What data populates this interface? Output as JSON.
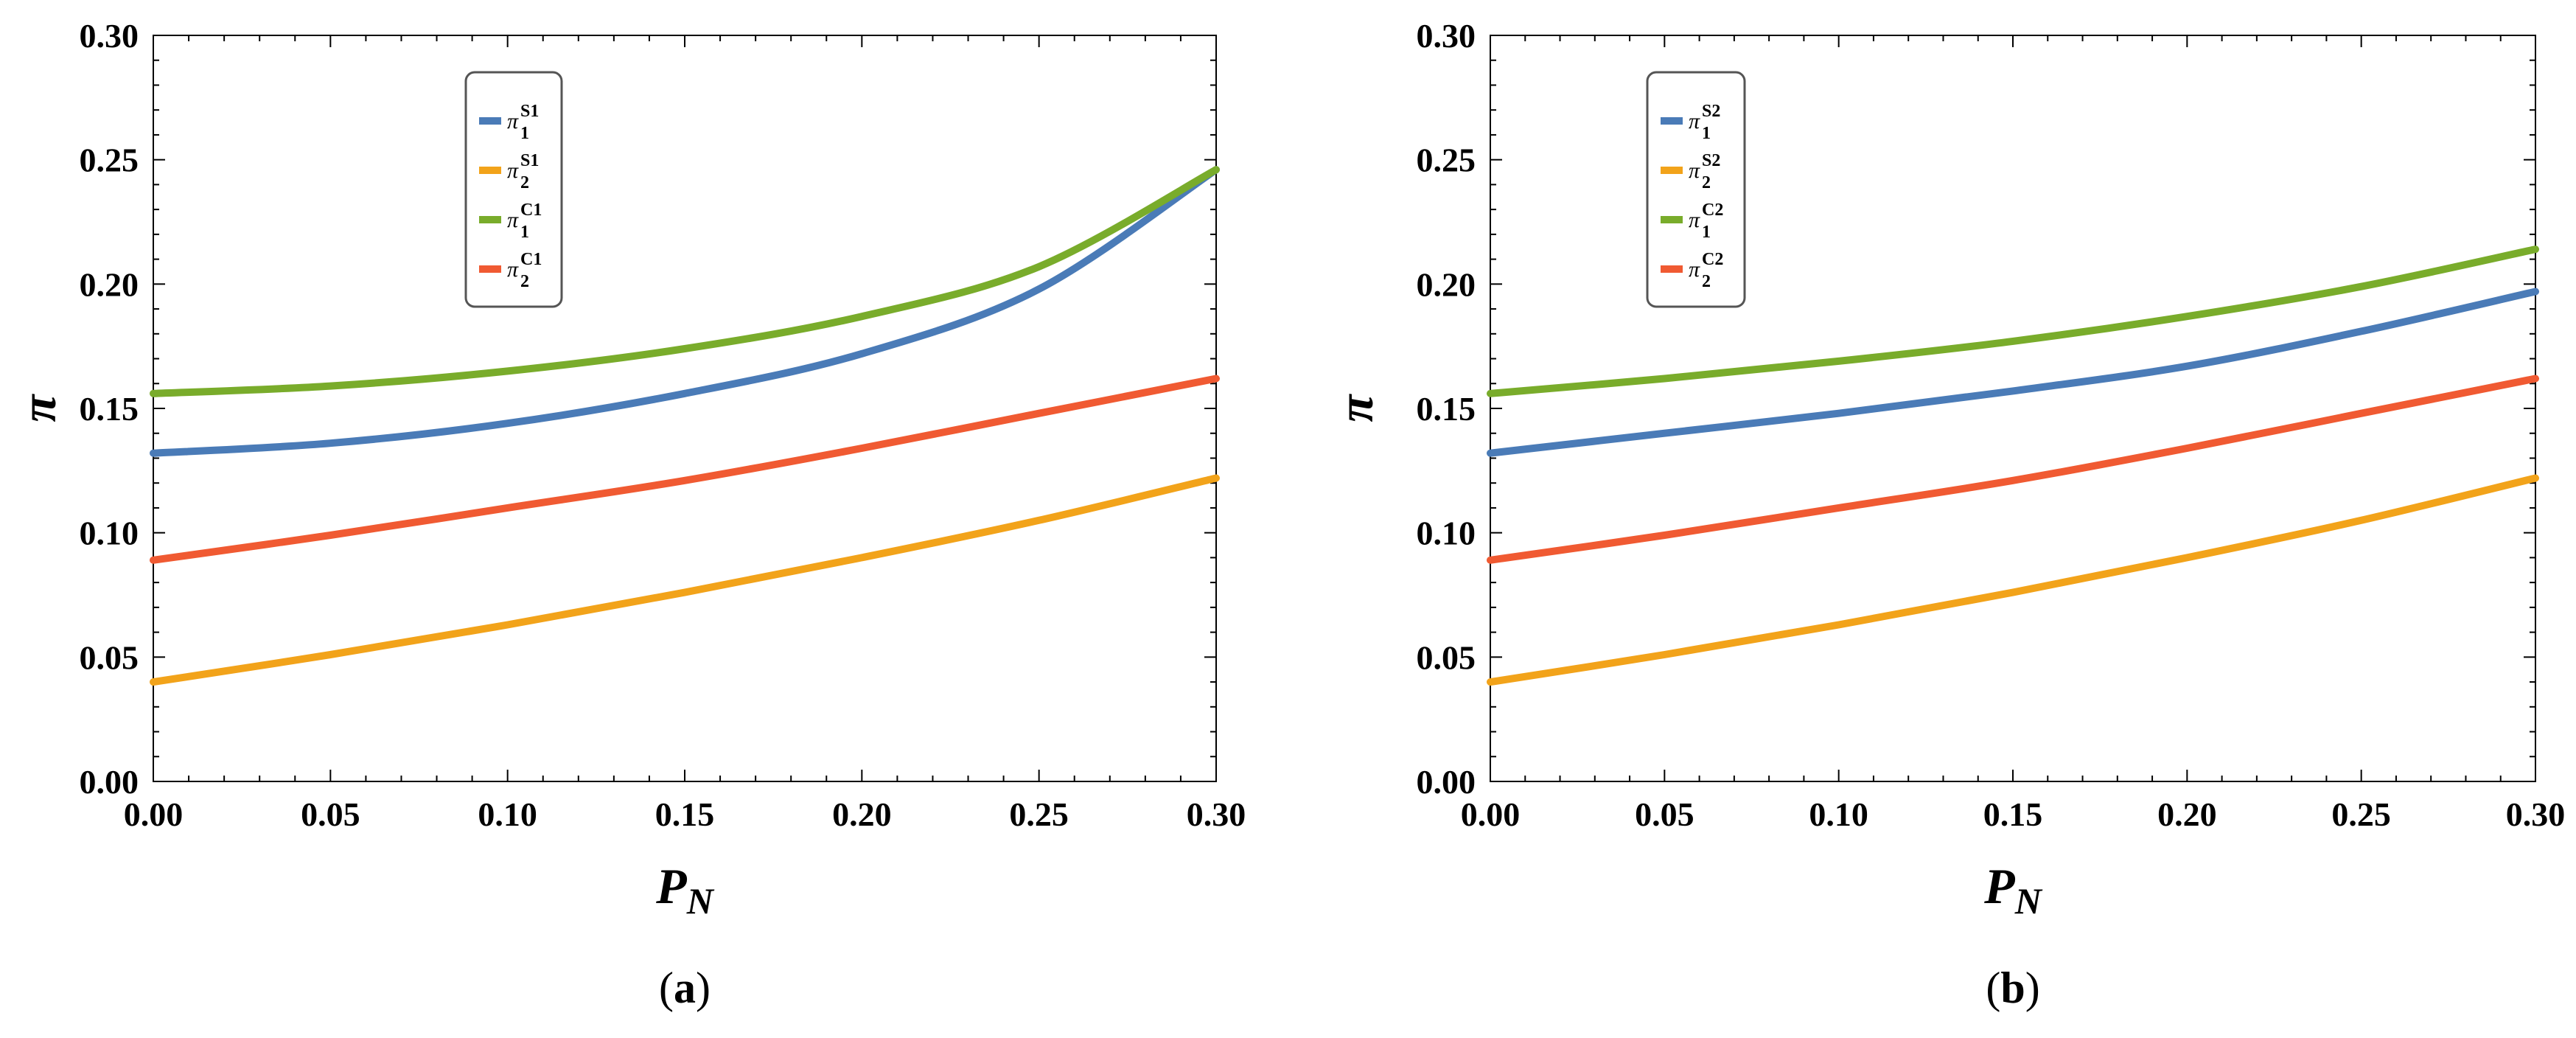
{
  "chart_data": [
    {
      "type": "line",
      "panel_label": "(a)",
      "xlabel": "P",
      "xlabel_sub": "N",
      "ylabel": "π",
      "xlim": [
        0,
        0.3
      ],
      "ylim": [
        0,
        0.3
      ],
      "x": [
        0.0,
        0.05,
        0.1,
        0.15,
        0.2,
        0.25,
        0.3
      ],
      "xticks": [
        "0.00",
        "0.05",
        "0.10",
        "0.15",
        "0.20",
        "0.25",
        "0.30"
      ],
      "yticks": [
        "0.00",
        "0.05",
        "0.10",
        "0.15",
        "0.20",
        "0.25",
        "0.30"
      ],
      "legend_position": "top-center",
      "series": [
        {
          "name": "π1S1",
          "base": "π",
          "sub": "1",
          "sup": "S1",
          "color": "#4a7bb7",
          "values": [
            0.132,
            0.136,
            0.144,
            0.156,
            0.172,
            0.198,
            0.246
          ]
        },
        {
          "name": "π2S1",
          "base": "π",
          "sub": "2",
          "sup": "S1",
          "color": "#f2a31a",
          "values": [
            0.04,
            0.051,
            0.063,
            0.076,
            0.09,
            0.105,
            0.122
          ]
        },
        {
          "name": "π1C1",
          "base": "π",
          "sub": "1",
          "sup": "C1",
          "color": "#79ac2b",
          "values": [
            0.156,
            0.159,
            0.165,
            0.174,
            0.187,
            0.207,
            0.246
          ]
        },
        {
          "name": "π2C1",
          "base": "π",
          "sub": "2",
          "sup": "C1",
          "color": "#f05a32",
          "values": [
            0.089,
            0.099,
            0.11,
            0.121,
            0.134,
            0.148,
            0.162
          ]
        }
      ]
    },
    {
      "type": "line",
      "panel_label": "(b)",
      "xlabel": "P",
      "xlabel_sub": "N",
      "ylabel": "π",
      "xlim": [
        0,
        0.3
      ],
      "ylim": [
        0,
        0.3
      ],
      "x": [
        0.0,
        0.05,
        0.1,
        0.15,
        0.2,
        0.25,
        0.3
      ],
      "xticks": [
        "0.00",
        "0.05",
        "0.10",
        "0.15",
        "0.20",
        "0.25",
        "0.30"
      ],
      "yticks": [
        "0.00",
        "0.05",
        "0.10",
        "0.15",
        "0.20",
        "0.25",
        "0.30"
      ],
      "legend_position": "top-left",
      "series": [
        {
          "name": "π1S2",
          "base": "π",
          "sub": "1",
          "sup": "S2",
          "color": "#4a7bb7",
          "values": [
            0.132,
            0.14,
            0.148,
            0.157,
            0.167,
            0.181,
            0.197
          ]
        },
        {
          "name": "π2S2",
          "base": "π",
          "sub": "2",
          "sup": "S2",
          "color": "#f2a31a",
          "values": [
            0.04,
            0.051,
            0.063,
            0.076,
            0.09,
            0.105,
            0.122
          ]
        },
        {
          "name": "π1C2",
          "base": "π",
          "sub": "1",
          "sup": "C2",
          "color": "#79ac2b",
          "values": [
            0.156,
            0.162,
            0.169,
            0.177,
            0.187,
            0.199,
            0.214
          ]
        },
        {
          "name": "π2C2",
          "base": "π",
          "sub": "2",
          "sup": "C2",
          "color": "#f05a32",
          "values": [
            0.089,
            0.099,
            0.11,
            0.121,
            0.134,
            0.148,
            0.162
          ]
        }
      ]
    }
  ]
}
